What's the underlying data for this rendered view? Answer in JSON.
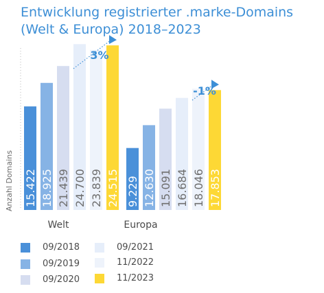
{
  "title": "Entwicklung registrierter .marke-Domains",
  "subtitle": "(Welt & Europa) 2018–2023",
  "chart_data": {
    "type": "bar",
    "categories": [
      "Welt",
      "Europa"
    ],
    "ylabel": "Anzahl Domains",
    "series": [
      {
        "name": "09/2018",
        "color": "#4a90d9",
        "values": [
          15422,
          9229
        ],
        "labels": [
          "15.422",
          "9.229"
        ]
      },
      {
        "name": "09/2019",
        "color": "#86b3e5",
        "values": [
          18925,
          12630
        ],
        "labels": [
          "18.925",
          "12.630"
        ]
      },
      {
        "name": "09/2020",
        "color": "#d6ddf0",
        "values": [
          21439,
          15091
        ],
        "labels": [
          "21.439",
          "15.091"
        ]
      },
      {
        "name": "09/2021",
        "color": "#e6eefa",
        "values": [
          24700,
          16684
        ],
        "labels": [
          "24.700",
          "16.684"
        ]
      },
      {
        "name": "11/2022",
        "color": "#eef3fb",
        "values": [
          23839,
          18046
        ],
        "labels": [
          "23.839",
          "18.046"
        ]
      },
      {
        "name": "11/2023",
        "color": "#fdd835",
        "values": [
          24515,
          17853
        ],
        "labels": [
          "24.515",
          "17.853"
        ]
      }
    ],
    "annotations": [
      {
        "group": "Welt",
        "text": "3%"
      },
      {
        "group": "Europa",
        "text": "-1%"
      }
    ],
    "ylim": [
      0,
      28000
    ]
  }
}
